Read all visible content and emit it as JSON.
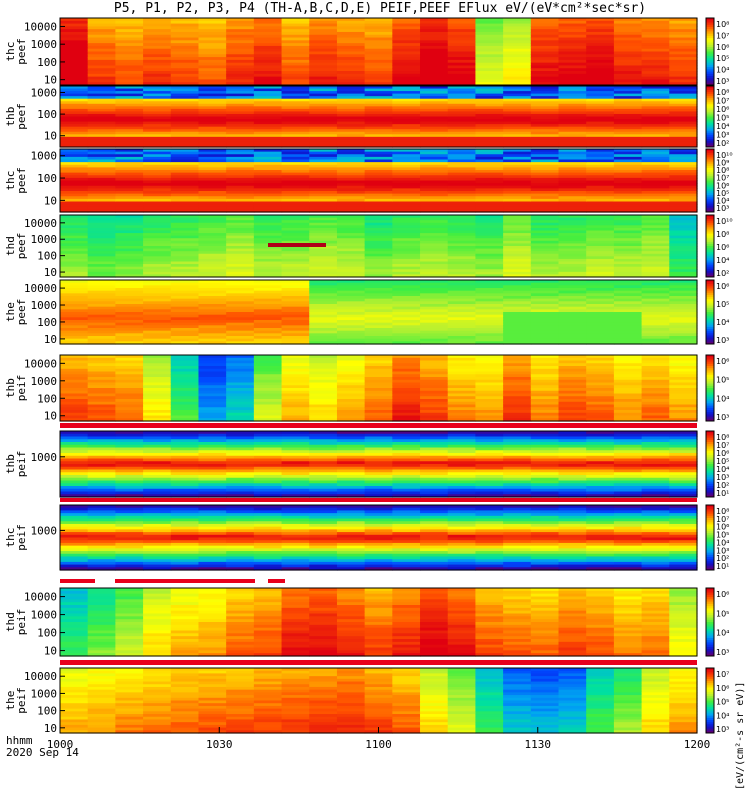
{
  "title": "P5, P1, P2, P3, P4 (TH-A,B,C,D,E) PEIF,PEEF EFlux eV/(eV*cm²*sec*sr)",
  "time_caption": {
    "line1": "hhmm",
    "line2": "2020 Sep 14"
  },
  "colorbar_unit": "[eV/(cm²-s sr eV)]",
  "chart_data": [
    {
      "type": "heatmap",
      "ylabel": [
        "thc",
        "peef"
      ],
      "yticks": [
        "10000",
        "1000",
        "100",
        "10"
      ],
      "yrange": [
        5,
        30000
      ],
      "yscale": "log",
      "cbar_ticks": [
        "10⁸",
        "10⁷",
        "10⁶",
        "10⁵",
        "10⁴",
        "10³"
      ],
      "x_columns": 23,
      "profile": [
        8,
        6.7,
        6.5,
        6.8,
        6.6,
        6.4,
        6.9,
        7.2,
        6.5,
        7.0,
        6.8,
        6.6,
        7.4,
        7.9,
        7.5,
        4.5,
        5.0,
        7.3,
        7.4,
        7.6,
        7.1,
        7.0,
        6.8
      ],
      "bands": []
    },
    {
      "type": "heatmap",
      "ylabel": [
        "thb",
        "peef"
      ],
      "yticks": [
        "1000",
        "100",
        "10"
      ],
      "yrange": [
        3,
        2000
      ],
      "yscale": "log",
      "cbar_ticks": [
        "10⁸",
        "10⁷",
        "10⁶",
        "10⁵",
        "10⁴",
        "10³",
        "10²"
      ],
      "x_columns": 23,
      "pattern": "stripes"
    },
    {
      "type": "heatmap",
      "ylabel": [
        "thc",
        "peef"
      ],
      "yticks": [
        "1000",
        "100",
        "10"
      ],
      "yrange": [
        3,
        2000
      ],
      "yscale": "log",
      "cbar_ticks": [
        "10¹⁰",
        "10⁹",
        "10⁸",
        "10⁷",
        "10⁶",
        "10⁵",
        "10⁴",
        "10³"
      ],
      "x_columns": 23,
      "pattern": "stripes"
    },
    {
      "type": "heatmap",
      "ylabel": [
        "thd",
        "peef"
      ],
      "yticks": [
        "10000",
        "1000",
        "100",
        "10"
      ],
      "yrange": [
        5,
        30000
      ],
      "yscale": "log",
      "cbar_ticks": [
        "10¹⁰",
        "10⁸",
        "10⁶",
        "10⁴",
        "10²"
      ],
      "x_columns": 23,
      "profile": [
        3.8,
        3.5,
        3.6,
        3.9,
        4.0,
        4.2,
        4.4,
        4.0,
        4.1,
        4.3,
        4.2,
        3.7,
        4.0,
        4.1,
        4.0,
        3.8,
        4.4,
        3.9,
        4.0,
        4.2,
        4.1,
        4.3,
        3.0
      ],
      "bands": []
    },
    {
      "type": "heatmap",
      "ylabel": [
        "the",
        "peef"
      ],
      "yticks": [
        "10000",
        "1000",
        "100",
        "10"
      ],
      "yrange": [
        5,
        30000
      ],
      "yscale": "log",
      "cbar_ticks": [
        "10⁶",
        "10⁵",
        "10⁴",
        "10³"
      ],
      "x_columns": 23,
      "pattern": "plasma"
    },
    {
      "type": "heatmap",
      "ylabel": [
        "thb",
        "peif"
      ],
      "yticks": [
        "10000",
        "1000",
        "100",
        "10"
      ],
      "yrange": [
        5,
        30000
      ],
      "yscale": "log",
      "cbar_ticks": [
        "10⁶",
        "10⁵",
        "10⁴",
        "10³"
      ],
      "x_columns": 23,
      "profile": [
        6.6,
        6.4,
        6.3,
        5.0,
        3.2,
        1.6,
        2.2,
        4.3,
        5.6,
        5.2,
        5.7,
        6.3,
        7.0,
        6.6,
        6.0,
        5.8,
        6.8,
        6.0,
        6.5,
        6.3,
        5.9,
        6.2,
        5.8
      ],
      "bands": []
    },
    {
      "type": "heatmap",
      "ylabel": [
        "thb",
        "peif"
      ],
      "yticks": [
        "1000"
      ],
      "yrange": [
        5,
        30000
      ],
      "yscale": "log",
      "cbar_ticks": [
        "10⁸",
        "10⁷",
        "10⁶",
        "10⁵",
        "10⁴",
        "10³",
        "10²",
        "10¹"
      ],
      "x_columns": 23,
      "pattern": "ionband"
    },
    {
      "type": "heatmap",
      "ylabel": [
        "thc",
        "peif"
      ],
      "yticks": [
        "1000"
      ],
      "yrange": [
        5,
        30000
      ],
      "yscale": "log",
      "cbar_ticks": [
        "10⁸",
        "10⁷",
        "10⁶",
        "10⁵",
        "10⁴",
        "10³",
        "10²",
        "10¹"
      ],
      "x_columns": 23,
      "pattern": "ionband"
    },
    {
      "type": "heatmap",
      "ylabel": [
        "thd",
        "peif"
      ],
      "yticks": [
        "10000",
        "1000",
        "100",
        "10"
      ],
      "yrange": [
        5,
        30000
      ],
      "yscale": "log",
      "cbar_ticks": [
        "10⁶",
        "10⁵",
        "10⁴",
        "10³"
      ],
      "x_columns": 23,
      "profile": [
        3.0,
        3.6,
        4.2,
        5.2,
        5.6,
        5.8,
        6.3,
        6.5,
        7.2,
        7.3,
        7.0,
        6.6,
        7.0,
        7.5,
        7.2,
        6.5,
        6.3,
        6.2,
        6.6,
        6.4,
        6.0,
        6.2,
        4.8
      ],
      "bands": []
    },
    {
      "type": "heatmap",
      "ylabel": [
        "the",
        "peif"
      ],
      "yticks": [
        "10000",
        "1000",
        "100",
        "10"
      ],
      "yrange": [
        5,
        30000
      ],
      "yscale": "log",
      "cbar_ticks": [
        "10⁷",
        "10⁶",
        "10⁵",
        "10⁴",
        "10³"
      ],
      "x_columns": 23,
      "profile": [
        5.6,
        5.8,
        6.0,
        6.1,
        6.3,
        6.4,
        6.5,
        6.6,
        6.7,
        6.8,
        6.9,
        6.6,
        6.3,
        5.2,
        4.4,
        3.0,
        2.0,
        1.8,
        2.0,
        3.2,
        3.8,
        5.2,
        5.8
      ],
      "bands": []
    }
  ],
  "x_axis": {
    "ticks": [
      {
        "label": "1000",
        "frac": 0
      },
      {
        "label": "1030",
        "frac": 0.25
      },
      {
        "label": "1100",
        "frac": 0.5
      },
      {
        "label": "1130",
        "frac": 0.75
      },
      {
        "label": "1200",
        "frac": 1
      }
    ]
  },
  "colors": {
    "background": "#ffffff",
    "frame": "#000000",
    "flag_red": "#e8001c"
  }
}
